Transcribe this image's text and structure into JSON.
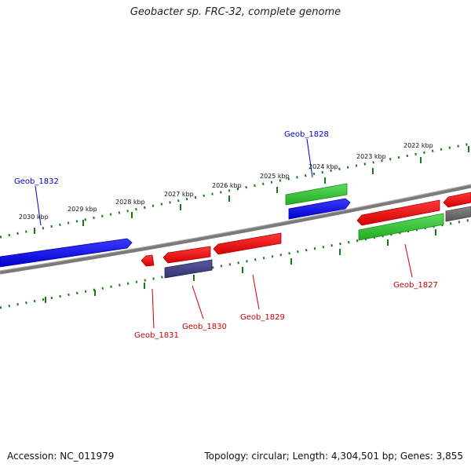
{
  "title": "Geobacter sp. FRC-32, complete genome",
  "footer": {
    "accession": "Accession: NC_011979",
    "summary": "Topology: circular; Length: 4,304,501 bp; Genes: 3,855"
  },
  "map": {
    "scale_labels": [
      "2030 kbp",
      "2029 kbp",
      "2028 kbp",
      "2027 kbp",
      "2026 kbp",
      "2025 kbp",
      "2024 kbp",
      "2023 kbp",
      "2022 kbp"
    ],
    "gene_labels": [
      "Geob_1832",
      "Geob_1828",
      "Geob_1831",
      "Geob_1830",
      "Geob_1829",
      "Geob_1827"
    ],
    "colors": {
      "forward_cds": "#0000ff",
      "reverse_cds": "#ff0000",
      "rna": "#33cc33",
      "other": "#4b4b8c",
      "gray_feature": "#666666",
      "backbone": "#808080",
      "ticks": "#1a7a1a"
    }
  }
}
